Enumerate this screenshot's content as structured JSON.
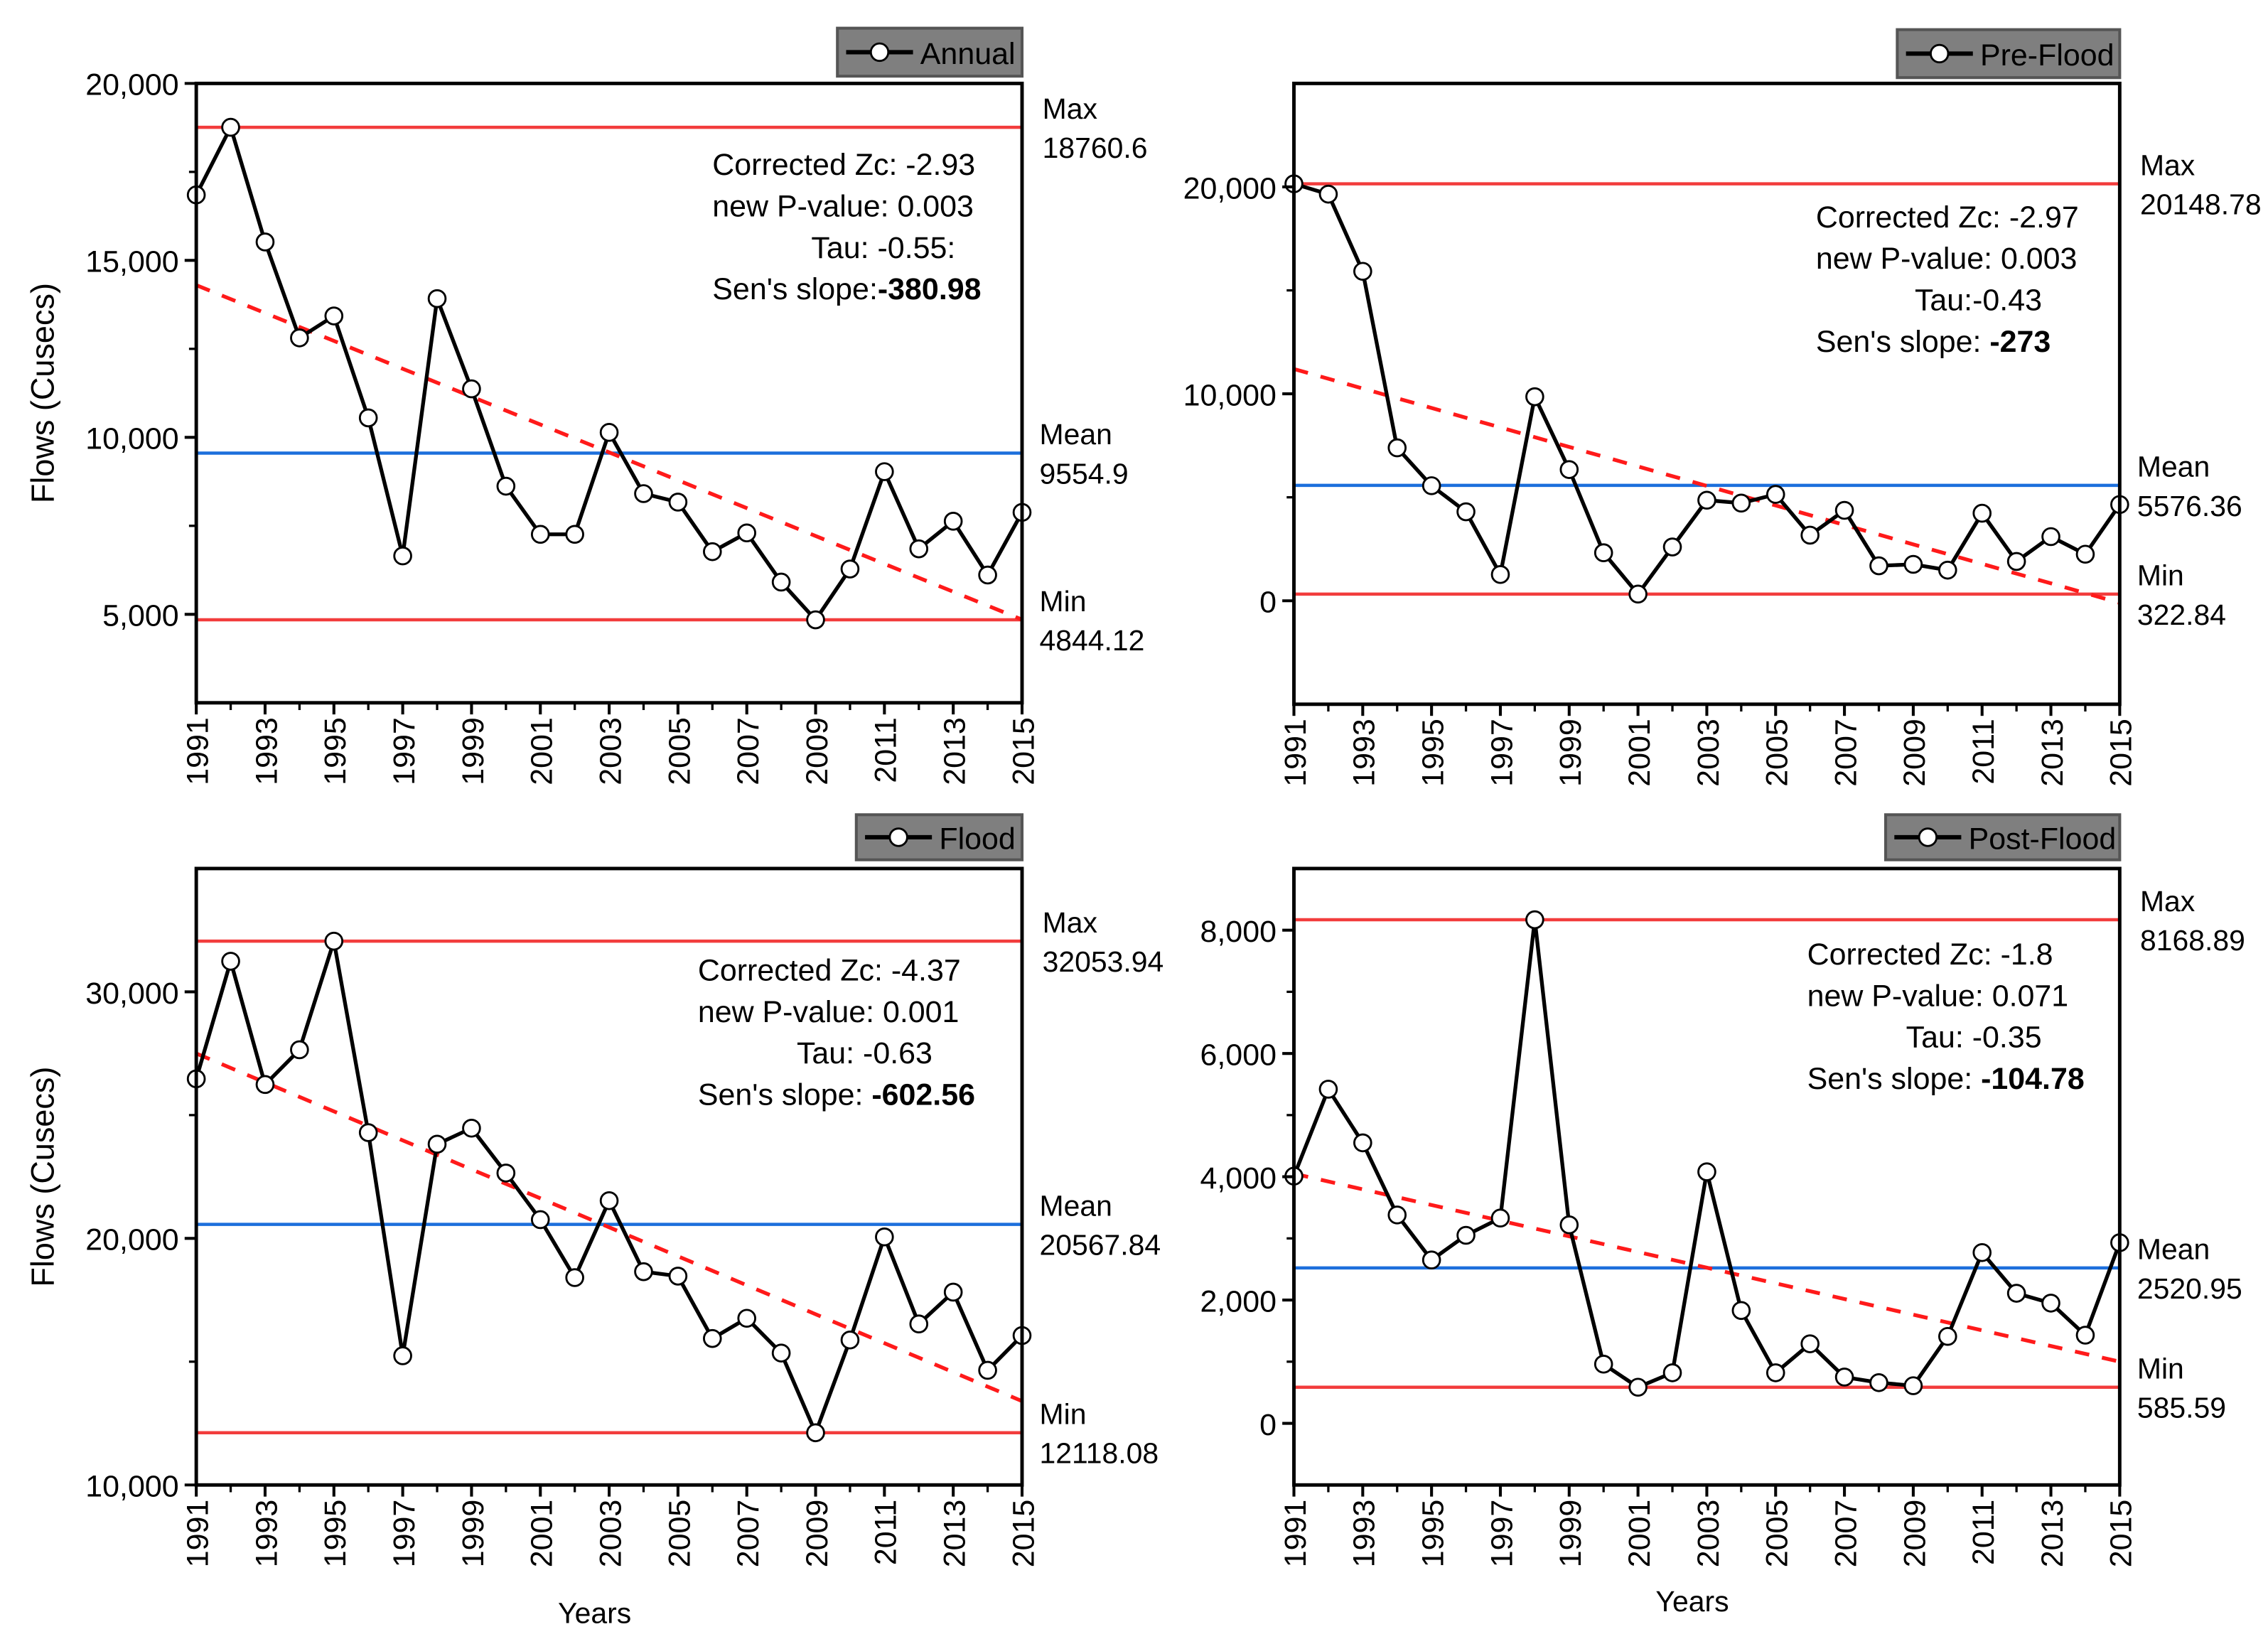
{
  "chart_data": [
    {
      "type": "line",
      "legend": "Annual",
      "ylabel": "Flows (Cusecs)",
      "xlabel": "",
      "xlim": [
        1991,
        2015
      ],
      "ylim": [
        2500,
        20000
      ],
      "yticks": [
        5000,
        10000,
        15000,
        20000
      ],
      "ytick_labels": [
        "5,000",
        "10,000",
        "15,000",
        "20,000"
      ],
      "xticks": [
        1991,
        1993,
        1995,
        1997,
        1999,
        2001,
        2003,
        2005,
        2007,
        2009,
        2011,
        2013,
        2015
      ],
      "x": [
        1991,
        1992,
        1993,
        1994,
        1995,
        1996,
        1997,
        1998,
        1999,
        2000,
        2001,
        2002,
        2003,
        2004,
        2005,
        2006,
        2007,
        2008,
        2009,
        2010,
        2011,
        2012,
        2013,
        2014,
        2015
      ],
      "values": [
        16850,
        18760.6,
        15520,
        12810,
        13430,
        10550,
        6650,
        13920,
        11370,
        8620,
        7260,
        7260,
        10140,
        8410,
        8170,
        6770,
        7300,
        5910,
        4844.12,
        6280,
        9030,
        6850,
        7630,
        6110,
        7880
      ],
      "trend": [
        14300,
        4850
      ],
      "max": {
        "label": "Max",
        "value": "18760.6",
        "y": 18760.6
      },
      "mean": {
        "label": "Mean",
        "value": "9554.9",
        "y": 9554.9
      },
      "min": {
        "label": "Min",
        "value": "4844.12",
        "y": 4844.12
      },
      "stats": [
        {
          "label": "Corrected Zc: -2.93",
          "value": ""
        },
        {
          "label": "new P-value: 0.003",
          "value": ""
        },
        {
          "label": "Tau: -0.55:",
          "value": "",
          "indent": true
        },
        {
          "label": "Sen's slope:",
          "value": "-380.98"
        }
      ]
    },
    {
      "type": "line",
      "legend": "Pre-Flood",
      "ylabel": "",
      "xlabel": "",
      "xlim": [
        1991,
        2015
      ],
      "ylim": [
        -5000,
        25000
      ],
      "yticks": [
        0,
        10000,
        20000
      ],
      "ytick_labels": [
        "0",
        "10,000",
        "20,000"
      ],
      "xticks": [
        1991,
        1993,
        1995,
        1997,
        1999,
        2001,
        2003,
        2005,
        2007,
        2009,
        2011,
        2013,
        2015
      ],
      "x": [
        1991,
        1992,
        1993,
        1994,
        1995,
        1996,
        1997,
        1998,
        1999,
        2000,
        2001,
        2002,
        2003,
        2004,
        2005,
        2006,
        2007,
        2008,
        2009,
        2010,
        2011,
        2012,
        2013,
        2014,
        2015
      ],
      "values": [
        20148.78,
        19650,
        15920,
        7390,
        5560,
        4300,
        1270,
        9860,
        6340,
        2320,
        322.84,
        2600,
        4860,
        4720,
        5140,
        3170,
        4370,
        1690,
        1760,
        1480,
        4230,
        1900,
        3100,
        2250,
        4650
      ],
      "trend": [
        11200,
        -100
      ],
      "max": {
        "label": "Max",
        "value": "20148.78",
        "y": 20148.78
      },
      "mean": {
        "label": "Mean",
        "value": "5576.36",
        "y": 5576.36
      },
      "min": {
        "label": "Min",
        "value": "322.84",
        "y": 322.84
      },
      "stats": [
        {
          "label": "Corrected Zc: -2.97",
          "value": ""
        },
        {
          "label": "new P-value: 0.003",
          "value": ""
        },
        {
          "label": "Tau:-0.43",
          "value": "",
          "indent": true
        },
        {
          "label": "Sen's slope: ",
          "value": "-273"
        }
      ]
    },
    {
      "type": "line",
      "legend": "Flood",
      "ylabel": "Flows (Cusecs)",
      "xlabel": "Years",
      "xlim": [
        1991,
        2015
      ],
      "ylim": [
        10000,
        35000
      ],
      "yticks": [
        10000,
        20000,
        30000
      ],
      "ytick_labels": [
        "10,000",
        "20,000",
        "30,000"
      ],
      "xticks": [
        1991,
        1993,
        1995,
        1997,
        1999,
        2001,
        2003,
        2005,
        2007,
        2009,
        2011,
        2013,
        2015
      ],
      "x": [
        1991,
        1992,
        1993,
        1994,
        1995,
        1996,
        1997,
        1998,
        1999,
        2000,
        2001,
        2002,
        2003,
        2004,
        2005,
        2006,
        2007,
        2008,
        2009,
        2010,
        2011,
        2012,
        2013,
        2014,
        2015
      ],
      "values": [
        26470,
        31240,
        26240,
        27650,
        32053.94,
        24290,
        15240,
        23820,
        24470,
        22650,
        20760,
        18410,
        21530,
        18650,
        18470,
        15940,
        16760,
        15350,
        12118.08,
        15880,
        20060,
        16530,
        17820,
        14650,
        16060
      ],
      "trend": [
        27500,
        13400
      ],
      "max": {
        "label": "Max",
        "value": "32053.94",
        "y": 32053.94
      },
      "mean": {
        "label": "Mean",
        "value": "20567.84",
        "y": 20567.84
      },
      "min": {
        "label": "Min",
        "value": "12118.08",
        "y": 12118.08
      },
      "stats": [
        {
          "label": "Corrected Zc:    -4.37",
          "value": ""
        },
        {
          "label": "new P-value: 0.001",
          "value": ""
        },
        {
          "label": "Tau: -0.63",
          "value": "",
          "indent": true
        },
        {
          "label": "Sen's slope: ",
          "value": "-602.56"
        }
      ]
    },
    {
      "type": "line",
      "legend": "Post-Flood",
      "ylabel": "",
      "xlabel": "Years",
      "xlim": [
        1991,
        2015
      ],
      "ylim": [
        -1000,
        9000
      ],
      "yticks": [
        0,
        2000,
        4000,
        6000,
        8000
      ],
      "ytick_labels": [
        "0",
        "2,000",
        "4,000",
        "6,000",
        "8,000"
      ],
      "xticks": [
        1991,
        1993,
        1995,
        1997,
        1999,
        2001,
        2003,
        2005,
        2007,
        2009,
        2011,
        2013,
        2015
      ],
      "x": [
        1991,
        1992,
        1993,
        1994,
        1995,
        1996,
        1997,
        1998,
        1999,
        2000,
        2001,
        2002,
        2003,
        2004,
        2005,
        2006,
        2007,
        2008,
        2009,
        2010,
        2011,
        2012,
        2013,
        2014,
        2015
      ],
      "values": [
        4010,
        5420,
        4550,
        3380,
        2650,
        3050,
        3330,
        8168.89,
        3220,
        960,
        585.59,
        820,
        4080,
        1830,
        820,
        1290,
        750,
        660,
        610,
        1410,
        2770,
        2110,
        1950,
        1430,
        2930
      ],
      "trend": [
        4050,
        1000
      ],
      "max": {
        "label": "Max",
        "value": "8168.89",
        "y": 8168.89
      },
      "mean": {
        "label": "Mean",
        "value": "2520.95",
        "y": 2520.95
      },
      "min": {
        "label": "Min",
        "value": "585.59",
        "y": 585.59
      },
      "stats": [
        {
          "label": "Corrected Zc: -1.8",
          "value": ""
        },
        {
          "label": "new P-value: 0.071",
          "value": ""
        },
        {
          "label": "Tau: -0.35",
          "value": "",
          "indent": true
        },
        {
          "label": "Sen's slope: ",
          "value": "-104.78"
        }
      ]
    }
  ],
  "colors": {
    "max_min": "#f23c3c",
    "mean": "#1c6fdc",
    "trend": "#ff1a1a",
    "series": "#000000",
    "legend_bg": "#7f7f7f"
  }
}
